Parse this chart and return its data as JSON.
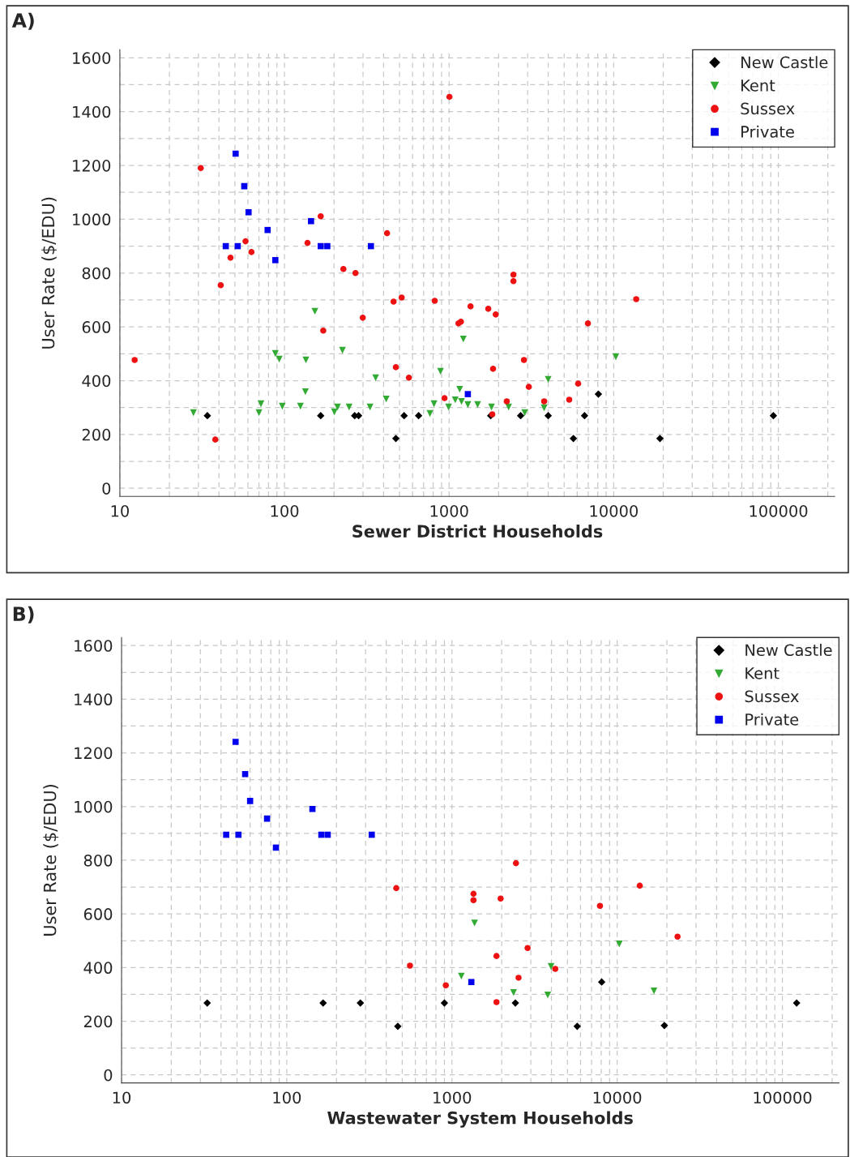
{
  "chart_data": [
    {
      "type": "scatter",
      "title": "A)",
      "xlabel": "Sewer District Households",
      "ylabel": "User Rate ($/EDU)",
      "log": "x",
      "xlim": [
        10,
        220000
      ],
      "xticks": [
        10,
        100,
        1000,
        10000,
        100000
      ],
      "ylim": [
        -30,
        1630
      ],
      "yticks": [
        0,
        200,
        400,
        600,
        800,
        1000,
        1200,
        1400,
        1600
      ],
      "grid": true,
      "legend": "top right",
      "series": [
        {
          "name": "New Castle",
          "color": "#000000",
          "marker": "diamond",
          "x": [
            34,
            166,
            267,
            282,
            475,
            533,
            653,
            1790,
            2720,
            4000,
            5690,
            6650,
            8070,
            19100,
            93300
          ],
          "values": [
            270,
            270,
            270,
            270,
            185,
            270,
            270,
            270,
            270,
            270,
            185,
            270,
            350,
            185,
            270
          ]
        },
        {
          "name": "Kent",
          "color": "#33aa33",
          "marker": "triangle",
          "x": [
            28,
            70,
            72,
            88,
            93,
            97,
            125,
            134,
            135,
            153,
            201,
            210,
            225,
            247,
            331,
            358,
            415,
            765,
            810,
            887,
            993,
            1090,
            1160,
            1190,
            1220,
            1300,
            1490,
            1810,
            2300,
            2880,
            3780,
            4000,
            10300
          ],
          "values": [
            281,
            281,
            314,
            501,
            480,
            305,
            305,
            359,
            477,
            658,
            284,
            302,
            513,
            302,
            302,
            411,
            332,
            278,
            314,
            435,
            302,
            329,
            368,
            323,
            555,
            311,
            311,
            302,
            302,
            281,
            299,
            405,
            489
          ]
        },
        {
          "name": "Sussex",
          "color": "#ee1111",
          "marker": "circle",
          "x": [
            12.3,
            31,
            38,
            41,
            47,
            58,
            63,
            138,
            166,
            172,
            228,
            270,
            299,
            420,
            460,
            515,
            475,
            570,
            818,
            938,
            1005,
            1140,
            1180,
            1350,
            1730,
            1920,
            1850,
            1830,
            2460,
            2460,
            2850,
            2240,
            3050,
            3780,
            5370,
            6080,
            6970,
            13700
          ],
          "values": [
            477,
            1190,
            181,
            755,
            857,
            918,
            878,
            912,
            1011,
            586,
            815,
            800,
            634,
            948,
            694,
            709,
            450,
            411,
            697,
            335,
            1455,
            613,
            619,
            676,
            667,
            646,
            444,
            275,
            794,
            770,
            477,
            323,
            377,
            323,
            329,
            389,
            613,
            703
          ]
        },
        {
          "name": "Private",
          "color": "#0000ee",
          "marker": "square",
          "x": [
            44,
            50.5,
            52,
            57,
            60.5,
            79,
            88,
            145,
            166,
            182,
            335,
            1300
          ],
          "values": [
            900,
            1244,
            900,
            1123,
            1026,
            960,
            848,
            993,
            900,
            900,
            900,
            350
          ]
        }
      ]
    },
    {
      "type": "scatter",
      "title": "B)",
      "xlabel": "Wastewater System Households",
      "ylabel": "User Rate ($/EDU)",
      "log": "x",
      "xlim": [
        10,
        220000
      ],
      "xticks": [
        10,
        100,
        1000,
        10000,
        100000
      ],
      "ylim": [
        -30,
        1630
      ],
      "yticks": [
        0,
        200,
        400,
        600,
        800,
        1000,
        1200,
        1400,
        1600
      ],
      "grid": true,
      "legend": "top right",
      "series": [
        {
          "name": "New Castle",
          "color": "#000000",
          "marker": "diamond",
          "x": [
            33,
            166,
            279,
            470,
            900,
            2420,
            5730,
            8060,
            19300,
            122000
          ],
          "values": [
            268,
            268,
            268,
            181,
            268,
            268,
            181,
            346,
            184,
            268
          ]
        },
        {
          "name": "Kent",
          "color": "#33aa33",
          "marker": "triangle",
          "x": [
            1140,
            1370,
            2360,
            3800,
            3980,
            10300,
            16700
          ],
          "values": [
            368,
            566,
            307,
            298,
            404,
            488,
            313
          ]
        },
        {
          "name": "Sussex",
          "color": "#ee1111",
          "marker": "circle",
          "x": [
            460,
            557,
            918,
            1350,
            1350,
            1860,
            1860,
            1970,
            2440,
            2530,
            2870,
            4220,
            7870,
            13700,
            23200
          ],
          "values": [
            696,
            407,
            334,
            675,
            651,
            443,
            271,
            657,
            789,
            362,
            473,
            395,
            630,
            705,
            515
          ]
        },
        {
          "name": "Private",
          "color": "#0000ee",
          "marker": "square",
          "x": [
            43,
            49,
            51,
            56,
            60,
            76,
            86,
            143,
            162,
            177,
            327,
            1310
          ],
          "values": [
            895,
            1241,
            895,
            1121,
            1021,
            955,
            847,
            991,
            895,
            895,
            895,
            346
          ]
        }
      ]
    }
  ]
}
